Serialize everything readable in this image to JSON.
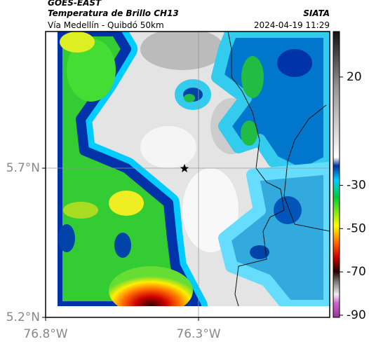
{
  "header": {
    "title": "GOES-EAST",
    "subtitle": "Temperatura de Brillo CH13",
    "route": "Vía Medellín - Quibdó 50km",
    "source": "SIATA",
    "timestamp": "2024-04-19 11:29"
  },
  "map": {
    "xlim": [
      -76.8,
      -75.871
    ],
    "ylim": [
      5.2,
      6.158
    ],
    "xticks": [
      {
        "value": -76.8,
        "label": "76.8°W"
      },
      {
        "value": -76.3,
        "label": "76.3°W"
      }
    ],
    "yticks": [
      {
        "value": 5.7,
        "label": "5.7°N"
      },
      {
        "value": 5.2,
        "label": "5.2°N"
      }
    ]
  },
  "colorbar": {
    "lim": [
      -91,
      41
    ],
    "ticks": [
      20,
      -30,
      -50,
      -70,
      -90
    ]
  }
}
